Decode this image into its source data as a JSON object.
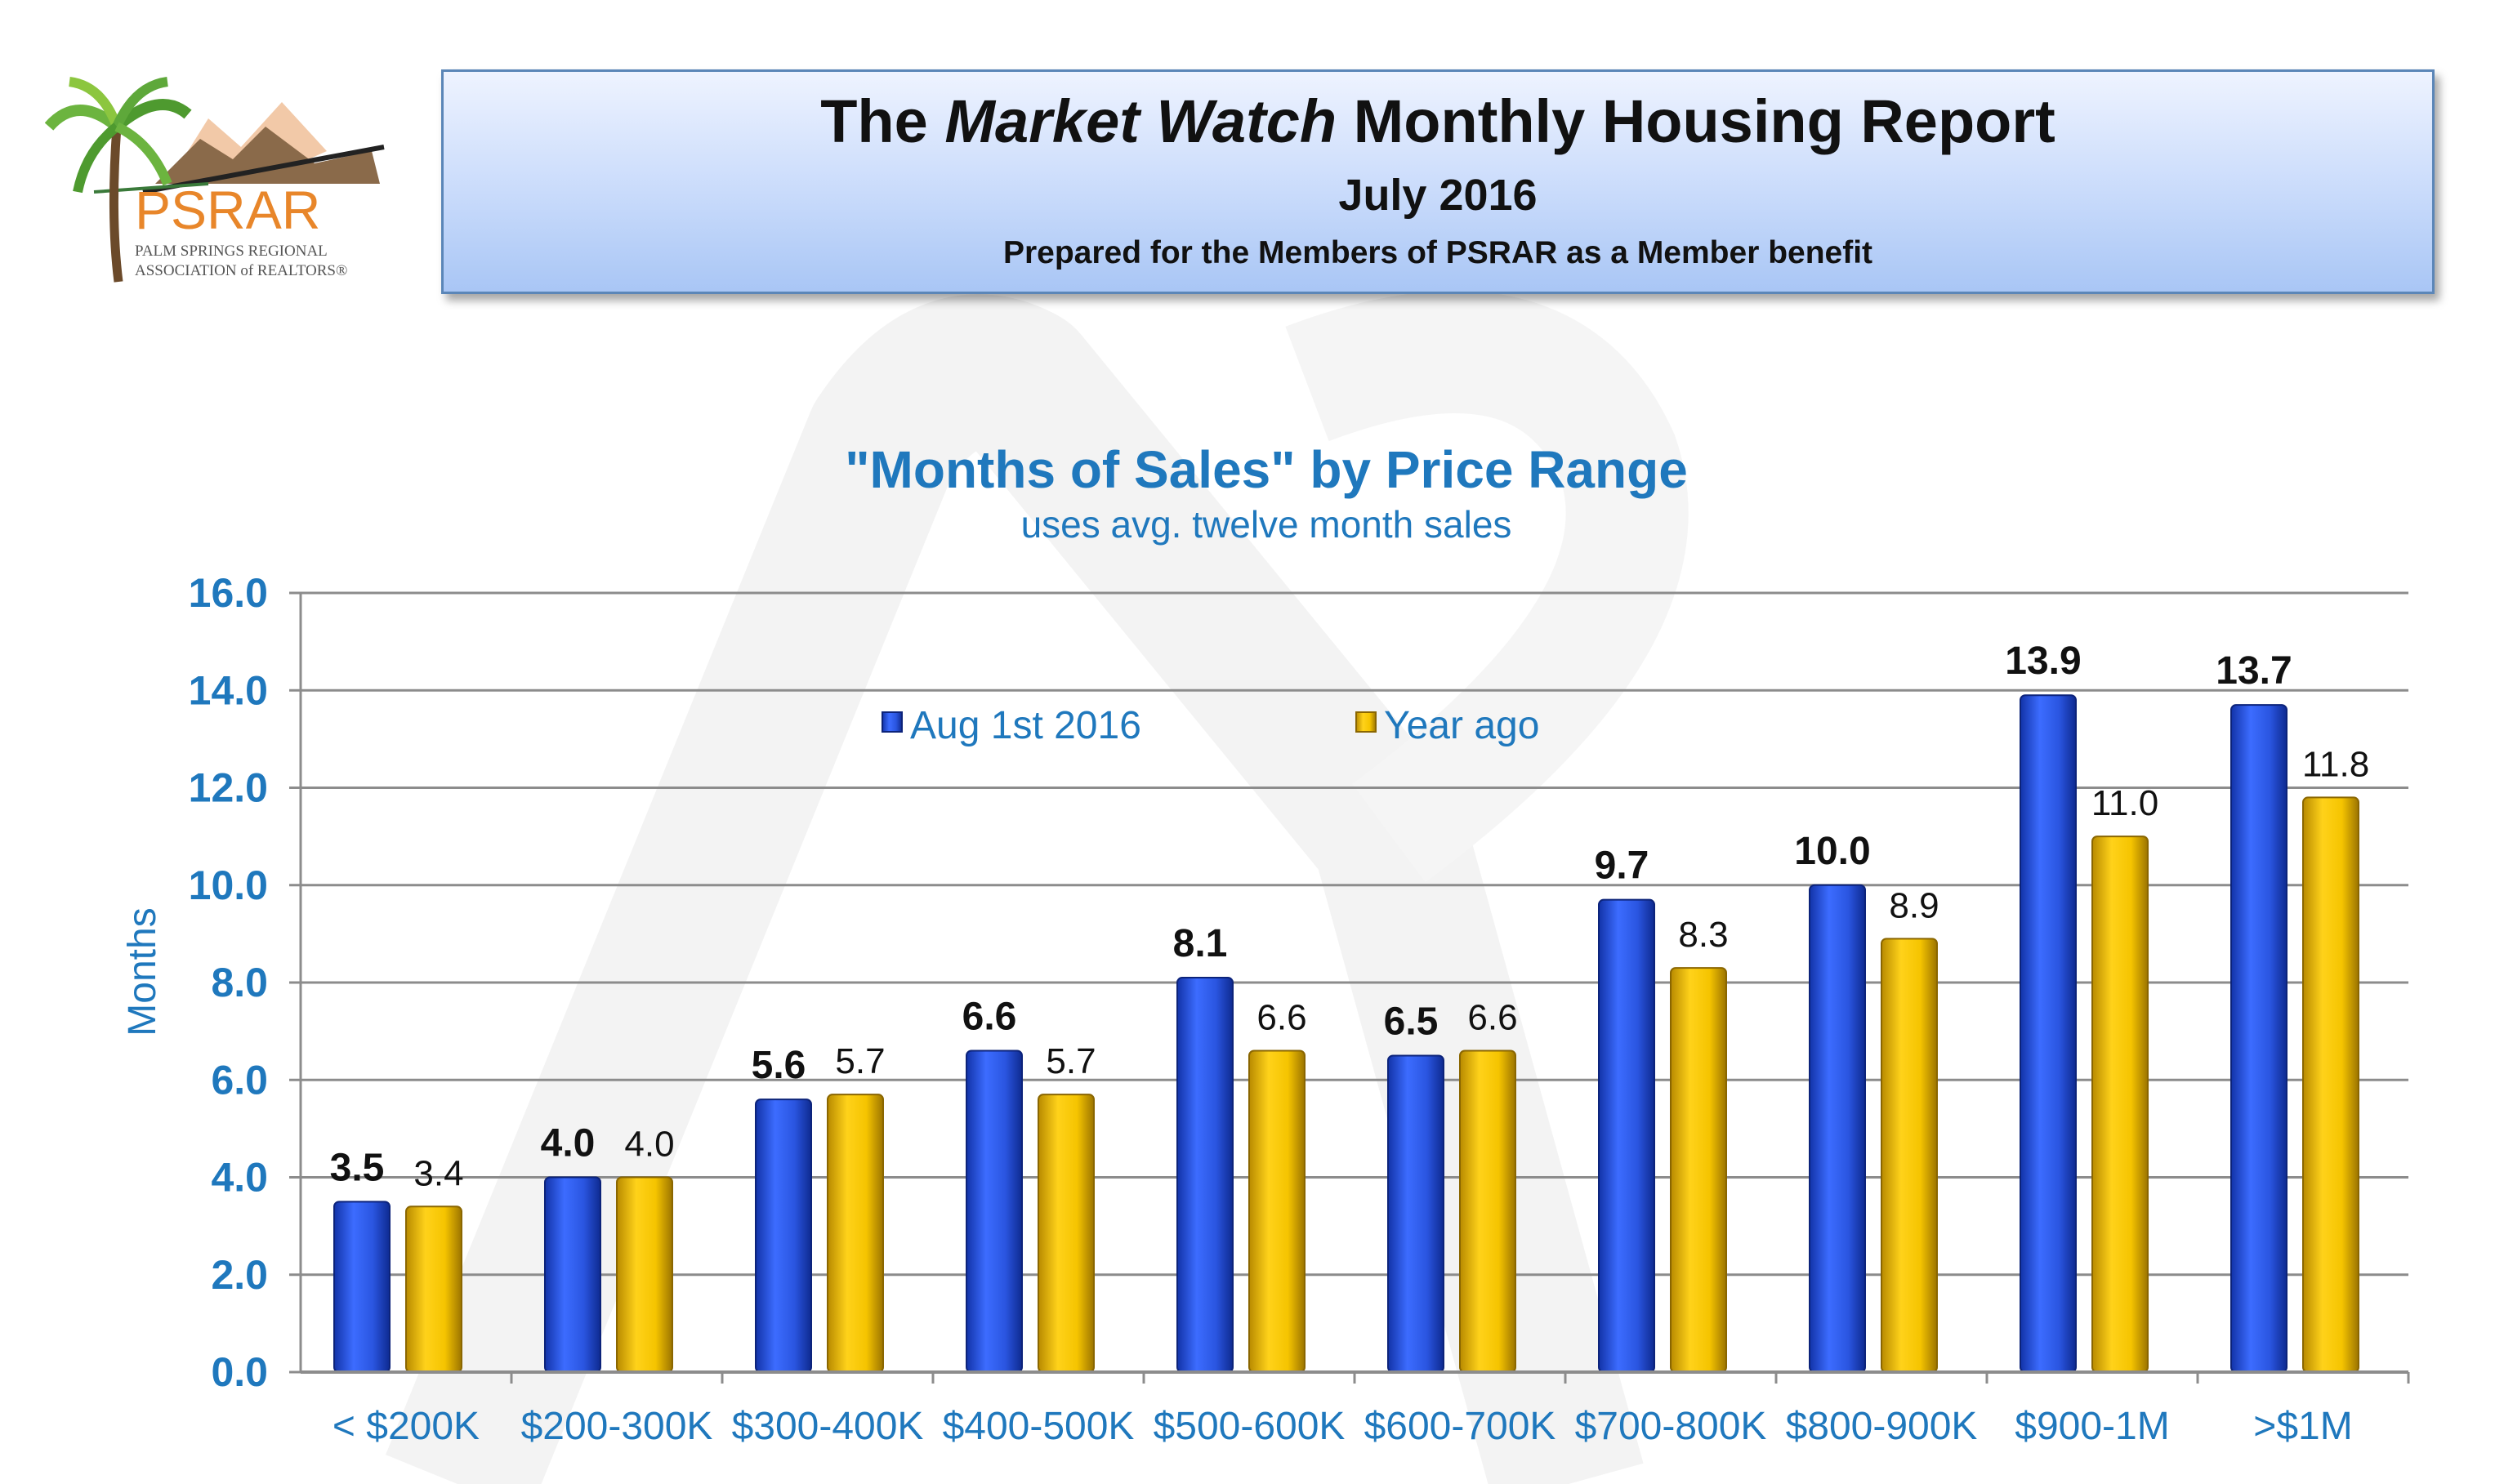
{
  "header": {
    "title_pre": "The ",
    "title_italic": "Market Watch",
    "title_post": " Monthly Housing Report",
    "date": "July 2016",
    "subtitle": "Prepared for the Members of PSRAR as a Member benefit"
  },
  "logo": {
    "abbr": "PSRAR",
    "line1": "PALM SPRINGS REGIONAL",
    "line2": "ASSOCIATION of REALTORS®"
  },
  "chart_data": {
    "type": "bar",
    "title": "\"Months of Sales\" by Price Range",
    "subtitle": "uses avg. twelve month sales",
    "ylabel": "Months",
    "xlabel": "",
    "ylim": [
      0,
      16
    ],
    "yticks": [
      "0.0",
      "2.0",
      "4.0",
      "6.0",
      "8.0",
      "10.0",
      "12.0",
      "14.0",
      "16.0"
    ],
    "grid": true,
    "legend_position": "top-center",
    "categories": [
      "< $200K",
      "$200-300K",
      "$300-400K",
      "$400-500K",
      "$500-600K",
      "$600-700K",
      "$700-800K",
      "$800-900K",
      "$900-1M",
      ">$1M"
    ],
    "series": [
      {
        "name": "Aug 1st 2016",
        "color": "#2f5fe8",
        "labels_bold": true,
        "values": [
          3.5,
          4.0,
          5.6,
          6.6,
          8.1,
          6.5,
          9.7,
          10.0,
          13.9,
          13.7
        ]
      },
      {
        "name": "Year ago",
        "color": "#f2c200",
        "labels_bold": false,
        "values": [
          3.4,
          4.0,
          5.7,
          5.7,
          6.6,
          6.6,
          8.3,
          8.9,
          11.0,
          11.8
        ]
      }
    ],
    "colors": {
      "axis_text": "#1f78bd",
      "grid": "#8c8c8c",
      "label_text": "#111111"
    }
  }
}
